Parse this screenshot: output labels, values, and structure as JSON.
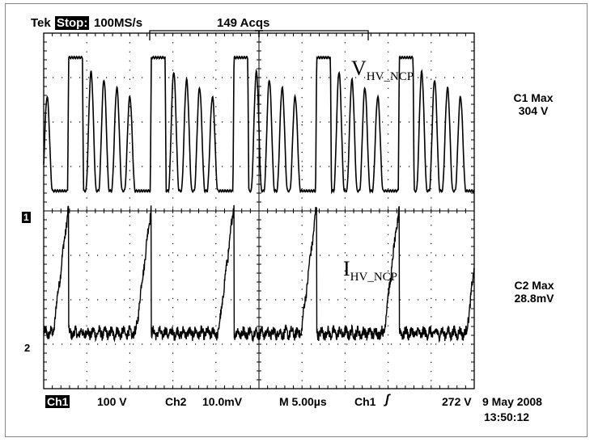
{
  "header": {
    "brand": "Tek",
    "mode": "Stop:",
    "sample_rate": "100MS/s",
    "acquisitions": "149 Acqs"
  },
  "channels": [
    {
      "marker": "1",
      "label_main": "V",
      "label_sub": "HV_NCP",
      "measure_name": "C1 Max",
      "measure_value": "304 V",
      "scale": "100 V"
    },
    {
      "marker": "2",
      "label_main": "I",
      "label_sub": "HV_NCP",
      "measure_name": "C2 Max",
      "measure_value": "28.8mV",
      "scale": "10.0mV"
    }
  ],
  "footer": {
    "ch1_tag": "Ch1",
    "ch1_scale": "100 V",
    "ch2_tag": "Ch2",
    "ch2_scale": "10.0mV",
    "timebase": "M 5.00µs",
    "trigger_source": "Ch1",
    "trigger_symbol": "ʃ",
    "trigger_level": "272 V",
    "date": "9 May 2008",
    "time": "13:50:12"
  },
  "colors": {
    "trace": "#000000",
    "grid": "#000000",
    "background": "#ffffff"
  },
  "chart_data": {
    "type": "line",
    "grid": true,
    "x_divisions": 10,
    "y_divisions": 8,
    "time_per_div_us": 5.0,
    "x_range_us": [
      0,
      50
    ],
    "series": [
      {
        "name": "V_HV_NCP",
        "units": "V",
        "volts_per_div": 100,
        "peak": 304,
        "pattern_period_us": 9.6,
        "segments": [
          {
            "type": "bump",
            "t": 0.4,
            "amp": 205
          },
          {
            "type": "flat",
            "t0": 2.9,
            "t1": 4.5,
            "level": 300
          },
          {
            "type": "bump",
            "t": 5.5,
            "amp": 268
          },
          {
            "type": "bump",
            "t": 7.0,
            "amp": 250
          },
          {
            "type": "bump",
            "t": 8.5,
            "amp": 232
          },
          {
            "type": "bump",
            "t": 10.0,
            "amp": 212
          }
        ]
      },
      {
        "name": "I_HV_NCP",
        "units": "mV",
        "mv_per_div": 10.0,
        "peak": 28.8,
        "baseline": 0,
        "noise": 2.2,
        "ramp_start_us": 1.1,
        "ramp_end_us": 2.9,
        "ramp_period_us": 9.6
      }
    ]
  }
}
